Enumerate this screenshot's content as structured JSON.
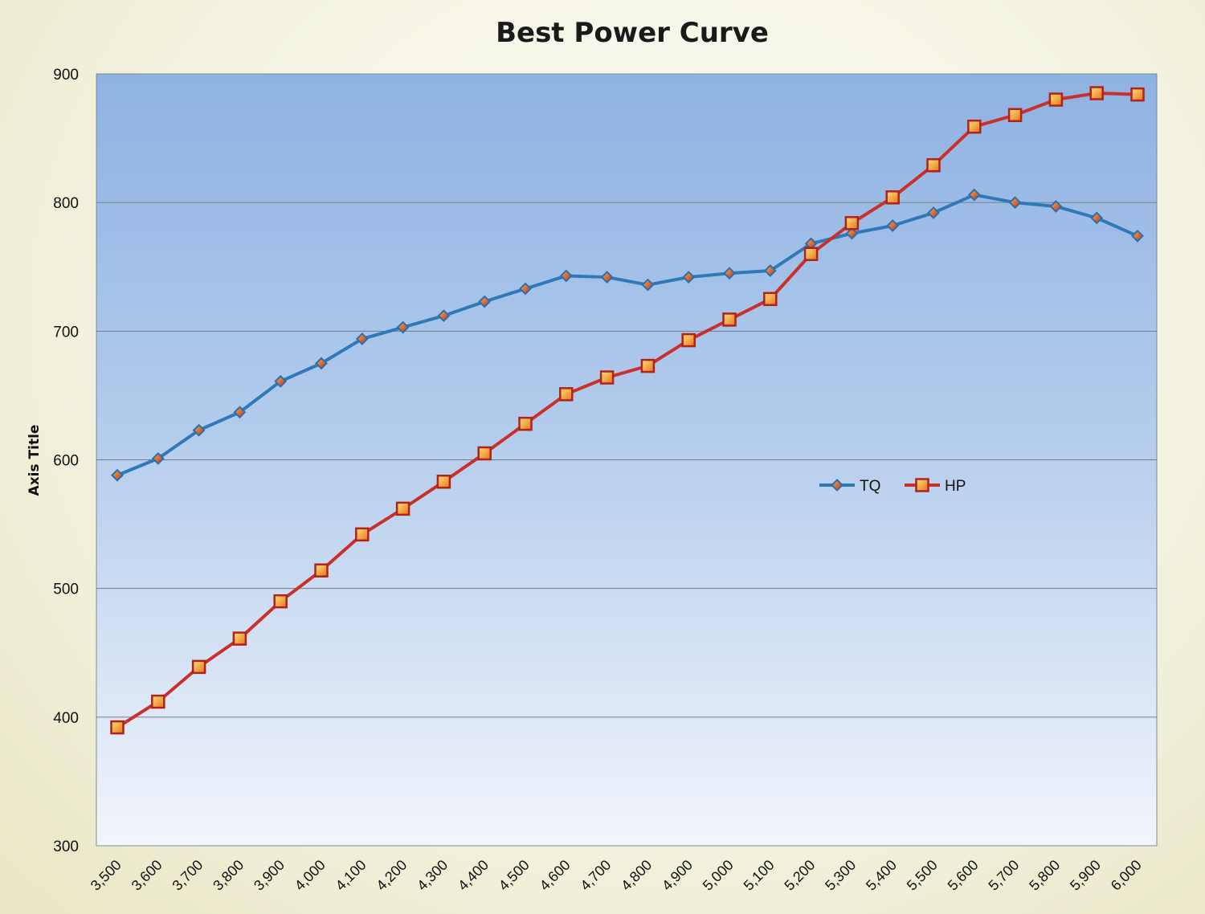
{
  "chart_data": {
    "type": "line",
    "title": "Best Power Curve",
    "xlabel": "",
    "ylabel": "Axis Title",
    "ylim": [
      300,
      900
    ],
    "yticks": [
      "300",
      "400",
      "500",
      "600",
      "700",
      "800",
      "900"
    ],
    "grid": true,
    "legend_position": "center-right",
    "categories": [
      "3,500",
      "3,600",
      "3,700",
      "3,800",
      "3,900",
      "4,000",
      "4,100",
      "4,200",
      "4,300",
      "4,400",
      "4,500",
      "4,600",
      "4,700",
      "4,800",
      "4,900",
      "5,000",
      "5,100",
      "5,200",
      "5,300",
      "5,400",
      "5,500",
      "5,600",
      "5,700",
      "5,800",
      "5,900",
      "6,000"
    ],
    "series": [
      {
        "name": "TQ",
        "color": "#2e7ab8",
        "marker": "diamond",
        "values": [
          588,
          601,
          623,
          637,
          661,
          675,
          694,
          703,
          712,
          723,
          733,
          743,
          742,
          736,
          742,
          745,
          747,
          768,
          776,
          782,
          792,
          806,
          800,
          797,
          788,
          774
        ]
      },
      {
        "name": "HP",
        "color": "#c9302c",
        "marker": "square",
        "values": [
          392,
          412,
          439,
          461,
          490,
          514,
          542,
          562,
          583,
          605,
          628,
          651,
          664,
          673,
          693,
          709,
          725,
          760,
          784,
          804,
          829,
          859,
          868,
          880,
          885,
          884
        ]
      }
    ]
  }
}
